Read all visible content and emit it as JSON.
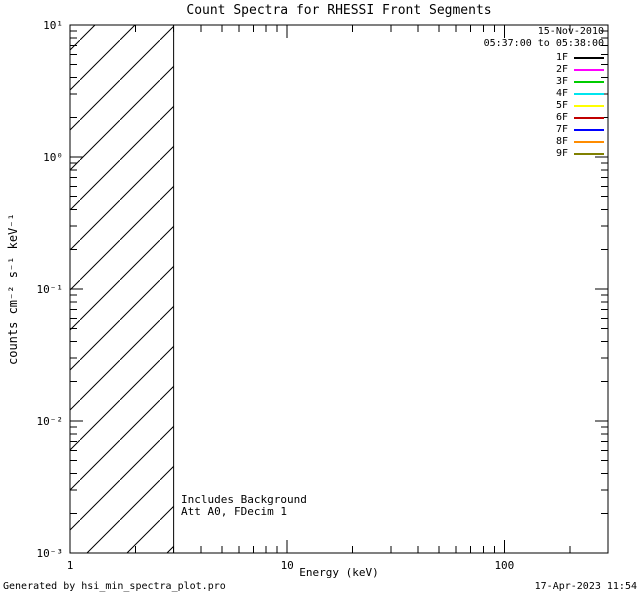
{
  "title": "Count Spectra for RHESSI Front Segments",
  "legend": {
    "date": "15-Nov-2010",
    "time_range": "05:37:00 to 05:38:00",
    "entries": [
      {
        "label": "1F",
        "color": "#000000"
      },
      {
        "label": "2F",
        "color": "#ff00ff"
      },
      {
        "label": "3F",
        "color": "#00cc00"
      },
      {
        "label": "4F",
        "color": "#00e5ee"
      },
      {
        "label": "5F",
        "color": "#ffff00"
      },
      {
        "label": "6F",
        "color": "#c00000"
      },
      {
        "label": "7F",
        "color": "#0000ff"
      },
      {
        "label": "8F",
        "color": "#ff8c00"
      },
      {
        "label": "9F",
        "color": "#808000"
      }
    ]
  },
  "annotations": {
    "line1": "Includes Background",
    "line2": "Att A0, FDecim 1"
  },
  "footer": {
    "left": "Generated by hsi_min_spectra_plot.pro",
    "right": "17-Apr-2023 11:54"
  },
  "chart_data": {
    "type": "line",
    "title": "Count Spectra for RHESSI Front Segments",
    "xlabel": "Energy (keV)",
    "ylabel": "counts cm⁻² s⁻¹ keV⁻¹",
    "xscale": "log",
    "yscale": "log",
    "xlim": [
      1,
      300
    ],
    "ylim": [
      0.001,
      10
    ],
    "x_ticks": [
      1,
      10,
      100
    ],
    "x_tick_labels": [
      "1",
      "10",
      "100"
    ],
    "y_ticks": [
      10,
      1,
      0.1,
      0.01,
      0.001
    ],
    "y_tick_labels": [
      "10¹",
      "10⁰",
      "10⁻¹",
      "10⁻²",
      "10⁻³"
    ],
    "grid": false,
    "legend_position": "top-right",
    "hatched_region": {
      "x_start": 1,
      "x_end": 3,
      "style": "diagonal-hatch"
    },
    "series": [
      {
        "name": "1F",
        "color": "#000000",
        "x": [],
        "values": []
      },
      {
        "name": "2F",
        "color": "#ff00ff",
        "x": [],
        "values": []
      },
      {
        "name": "3F",
        "color": "#00cc00",
        "x": [],
        "values": []
      },
      {
        "name": "4F",
        "color": "#00e5ee",
        "x": [],
        "values": []
      },
      {
        "name": "5F",
        "color": "#ffff00",
        "x": [],
        "values": []
      },
      {
        "name": "6F",
        "color": "#c00000",
        "x": [],
        "values": []
      },
      {
        "name": "7F",
        "color": "#0000ff",
        "x": [],
        "values": []
      },
      {
        "name": "8F",
        "color": "#ff8c00",
        "x": [],
        "values": []
      },
      {
        "name": "9F",
        "color": "#808000",
        "x": [],
        "values": []
      }
    ]
  }
}
